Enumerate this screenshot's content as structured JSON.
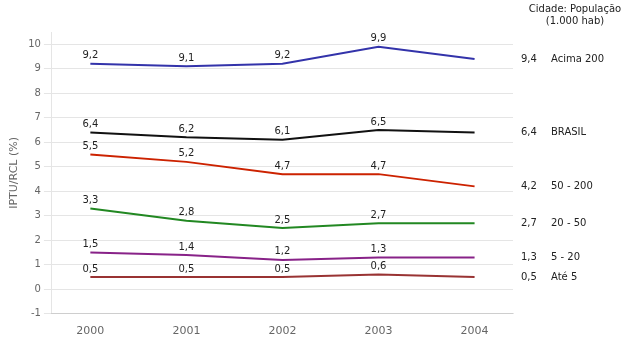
{
  "chart_data": {
    "type": "line",
    "ylabel": "IPTU/RCL (%)",
    "legend_title": "Cidade: População\n(1.000 hab)",
    "x": [
      2000,
      2001,
      2002,
      2003,
      2004
    ],
    "xlim": [
      1999.6,
      2004.4
    ],
    "xticks": [
      2000,
      2001,
      2002,
      2003,
      2004
    ],
    "ylim": [
      -1,
      10.5
    ],
    "yticks": [
      -1,
      0,
      1,
      2,
      3,
      4,
      5,
      6,
      7,
      8,
      9,
      10
    ],
    "grid": "y",
    "data_labels": true,
    "series": [
      {
        "name": "Acima 200",
        "color": "#3333aa",
        "values": [
          9.2,
          9.1,
          9.2,
          9.9,
          9.4
        ],
        "value_labels": [
          "9,2",
          "9,1",
          "9,2",
          "9,9",
          "9,4"
        ]
      },
      {
        "name": "BRASIL",
        "color": "#111111",
        "values": [
          6.4,
          6.2,
          6.1,
          6.5,
          6.4
        ],
        "value_labels": [
          "6,4",
          "6,2",
          "6,1",
          "6,5",
          "6,4"
        ]
      },
      {
        "name": "50 - 200",
        "color": "#cc2200",
        "values": [
          5.5,
          5.2,
          4.7,
          4.7,
          4.2
        ],
        "value_labels": [
          "5,5",
          "5,2",
          "4,7",
          "4,7",
          "4,2"
        ]
      },
      {
        "name": "20 - 50",
        "color": "#228822",
        "values": [
          3.3,
          2.8,
          2.5,
          2.7,
          2.7
        ],
        "value_labels": [
          "3,3",
          "2,8",
          "2,5",
          "2,7",
          "2,7"
        ]
      },
      {
        "name": "5 - 20",
        "color": "#882288",
        "values": [
          1.5,
          1.4,
          1.2,
          1.3,
          1.3
        ],
        "value_labels": [
          "1,5",
          "1,4",
          "1,2",
          "1,3",
          "1,3"
        ]
      },
      {
        "name": "Até 5",
        "color": "#993333",
        "values": [
          0.5,
          0.5,
          0.5,
          0.6,
          0.5
        ],
        "value_labels": [
          "0,5",
          "0,5",
          "0,5",
          "0,6",
          "0,5"
        ]
      }
    ]
  }
}
